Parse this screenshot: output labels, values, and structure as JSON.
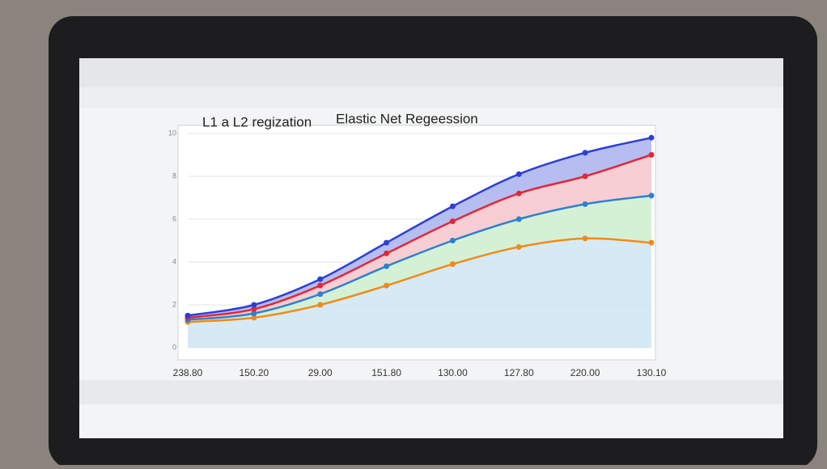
{
  "chart_data": {
    "type": "line",
    "title": "L1 a L2 regization",
    "subtitle": "Elastic Net Regeession",
    "categories": [
      "238.80",
      "150.20",
      "29.00",
      "151.80",
      "130.00",
      "127.80",
      "220.00",
      "130.10"
    ],
    "series": [
      {
        "color": "#f08a1c",
        "fill": "#cfe6f3",
        "values": [
          1.2,
          1.4,
          2.0,
          2.9,
          3.9,
          4.7,
          5.1,
          4.9
        ]
      },
      {
        "color": "#2f7fd0",
        "fill": "#cdefcf",
        "values": [
          1.3,
          1.6,
          2.5,
          3.8,
          5.0,
          6.0,
          6.7,
          7.1
        ]
      },
      {
        "color": "#e0283a",
        "fill": "#f6c5cb",
        "values": [
          1.4,
          1.8,
          2.9,
          4.4,
          5.9,
          7.2,
          8.0,
          9.0
        ]
      },
      {
        "color": "#2b3fd6",
        "fill": "#a9b1ee",
        "values": [
          1.5,
          2.0,
          3.2,
          4.9,
          6.6,
          8.1,
          9.1,
          9.8
        ]
      }
    ],
    "ylim": [
      0,
      10
    ],
    "yticks": [
      0,
      2,
      4,
      6,
      8,
      10
    ],
    "grid": true
  }
}
